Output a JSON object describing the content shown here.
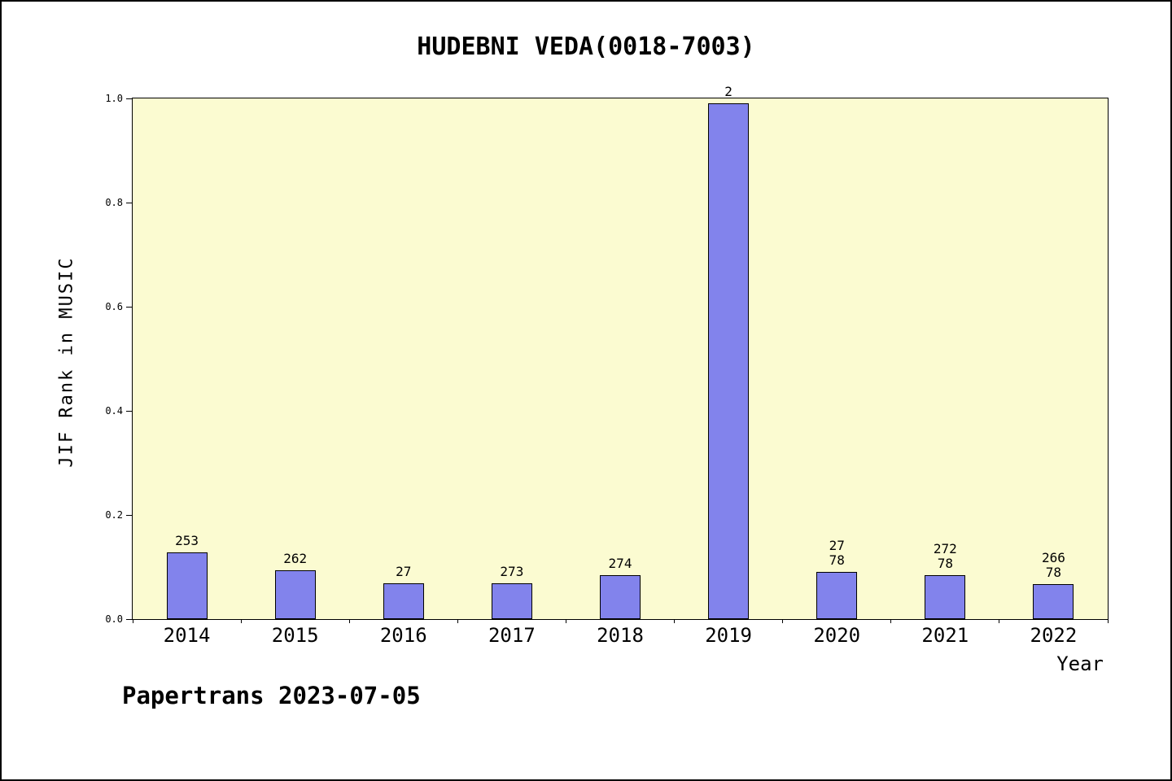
{
  "footer": "Papertrans 2023-07-05",
  "chart_data": {
    "type": "bar",
    "title": "HUDEBNI VEDA(0018-7003)",
    "xlabel": "Year",
    "ylabel": "JIF Rank in MUSIC",
    "categories": [
      "2014",
      "2015",
      "2016",
      "2017",
      "2018",
      "2019",
      "2020",
      "2021",
      "2022"
    ],
    "values": [
      0.128,
      0.094,
      0.069,
      0.069,
      0.085,
      0.99,
      0.09,
      0.085,
      0.067
    ],
    "bar_labels": [
      [
        "253"
      ],
      [
        "262"
      ],
      [
        "27"
      ],
      [
        "273"
      ],
      [
        "274"
      ],
      [
        "2"
      ],
      [
        "27",
        "78"
      ],
      [
        "272",
        "78"
      ],
      [
        "266",
        "78"
      ]
    ],
    "ylim": [
      0.0,
      1.0
    ],
    "yticks": [
      "0.0",
      "0.2",
      "0.4",
      "0.6",
      "0.8",
      "1.0"
    ],
    "grid": false,
    "legend": "none",
    "colors": {
      "bar_fill": "#8283EC",
      "bar_border": "#000000",
      "plot_bg": "#FBFBD1",
      "frame_bg": "#FFFFFF",
      "text": "#000000"
    }
  }
}
